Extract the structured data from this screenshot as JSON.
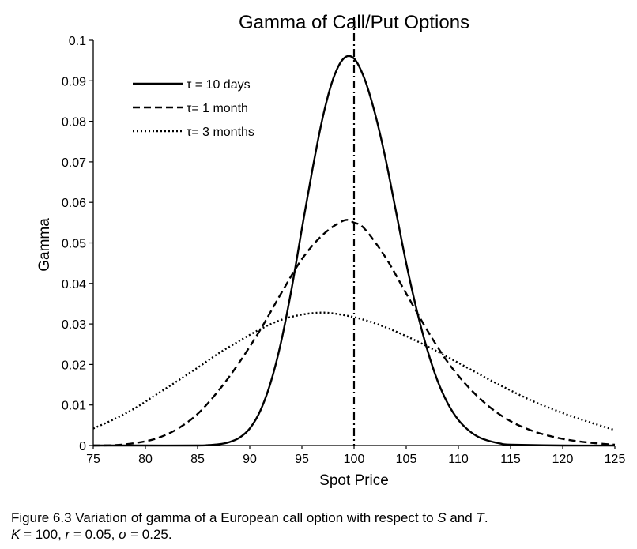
{
  "chart_data": {
    "type": "line",
    "title": "Gamma of Call/Put Options",
    "xlabel": "Spot Price",
    "ylabel": "Gamma",
    "xlim": [
      75,
      125
    ],
    "ylim": [
      0,
      0.1
    ],
    "xticks": [
      75,
      80,
      85,
      90,
      95,
      100,
      105,
      110,
      115,
      120,
      125
    ],
    "yticks": [
      0,
      0.01,
      0.02,
      0.03,
      0.04,
      0.05,
      0.06,
      0.07,
      0.08,
      0.09,
      0.1
    ],
    "ytick_labels": [
      "0",
      "0.01",
      "0.02",
      "0.03",
      "0.04",
      "0.05",
      "0.06",
      "0.07",
      "0.08",
      "0.09",
      "0.1"
    ],
    "grid": false,
    "legend": "top-left",
    "reference_line": {
      "x": 100,
      "style": "dash-dot"
    },
    "series": [
      {
        "name": "τ = 10 days",
        "style": "solid",
        "x": [
          75,
          80,
          85,
          86,
          87,
          88,
          89,
          90,
          91,
          92,
          93,
          94,
          95,
          96,
          97,
          98,
          99,
          100,
          101,
          102,
          103,
          104,
          105,
          106,
          107,
          108,
          109,
          110,
          111,
          112,
          113,
          114,
          115,
          120,
          125
        ],
        "y": [
          0,
          0,
          0,
          0.0001,
          0.0003,
          0.0008,
          0.0019,
          0.0042,
          0.0085,
          0.0155,
          0.0255,
          0.0385,
          0.0535,
          0.068,
          0.081,
          0.0905,
          0.0955,
          0.0955,
          0.0905,
          0.082,
          0.071,
          0.058,
          0.045,
          0.0335,
          0.0238,
          0.016,
          0.0103,
          0.0063,
          0.0037,
          0.002,
          0.0011,
          0.0005,
          0.0002,
          0,
          0
        ]
      },
      {
        "name": "τ= 1 month",
        "style": "dashed",
        "x": [
          75,
          77,
          79,
          81,
          83,
          85,
          87,
          89,
          91,
          93,
          95,
          97,
          99,
          100,
          101,
          103,
          105,
          107,
          109,
          111,
          113,
          115,
          117,
          119,
          121,
          123,
          125
        ],
        "y": [
          0,
          0.0001,
          0.0006,
          0.0017,
          0.004,
          0.0078,
          0.0135,
          0.0205,
          0.0285,
          0.0375,
          0.046,
          0.052,
          0.0555,
          0.055,
          0.0535,
          0.0465,
          0.0375,
          0.0285,
          0.0205,
          0.0143,
          0.0095,
          0.006,
          0.0037,
          0.0022,
          0.0012,
          0.0006,
          0.0002
        ]
      },
      {
        "name": "τ= 3 months",
        "style": "dotted",
        "x": [
          75,
          77,
          79,
          81,
          83,
          85,
          87,
          89,
          91,
          93,
          95,
          97,
          99,
          101,
          103,
          105,
          107,
          109,
          111,
          113,
          115,
          117,
          119,
          121,
          123,
          125
        ],
        "y": [
          0.0042,
          0.0065,
          0.0092,
          0.0125,
          0.0158,
          0.0192,
          0.0227,
          0.0258,
          0.0287,
          0.031,
          0.0323,
          0.0328,
          0.0322,
          0.031,
          0.0292,
          0.027,
          0.0245,
          0.0218,
          0.019,
          0.0162,
          0.0136,
          0.0111,
          0.009,
          0.0071,
          0.0054,
          0.0038
        ]
      }
    ]
  },
  "caption": {
    "line1_prefix": "Figure 6.3 Variation of gamma of a European call option with respect to ",
    "line1_s": "S",
    "line1_and": " and ",
    "line1_t": "T",
    "line1_end": ".",
    "line2_k": "K",
    "line2_a": " = 100, ",
    "line2_r": "r",
    "line2_b": " = 0.05, ",
    "line2_sigma": "σ",
    "line2_c": " = 0.25."
  }
}
